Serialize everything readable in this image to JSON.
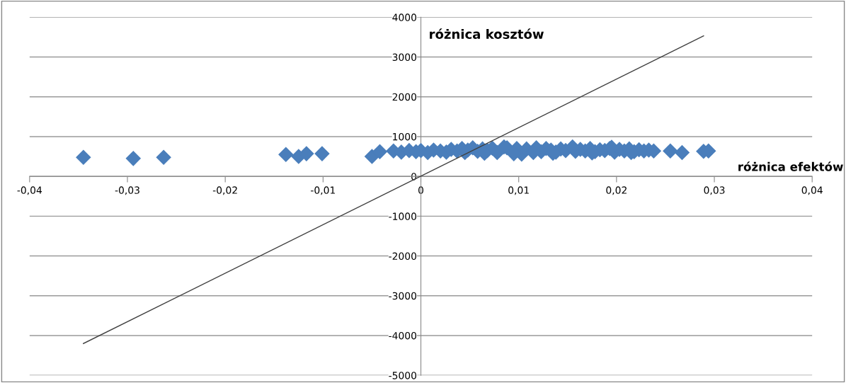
{
  "chart_data": {
    "type": "scatter",
    "xlabel": "różnica efektów",
    "ylabel": "różnica kosztów",
    "xlim": [
      -0.04,
      0.04
    ],
    "ylim": [
      -5000,
      4000
    ],
    "xticks": [
      {
        "value": -0.04,
        "label": "-0,04"
      },
      {
        "value": -0.03,
        "label": "-0,03"
      },
      {
        "value": -0.02,
        "label": "-0,02"
      },
      {
        "value": -0.01,
        "label": "-0,01"
      },
      0,
      {
        "value": 0.01,
        "label": "0,01"
      },
      {
        "value": 0.02,
        "label": "0,02"
      },
      {
        "value": 0.03,
        "label": "0,03"
      },
      {
        "value": 0.04,
        "label": "0,04"
      }
    ],
    "yticks": [
      -5000,
      -4000,
      -3000,
      -2000,
      -1000,
      0,
      1000,
      2000,
      3000,
      4000
    ],
    "grid": "y",
    "marker": "diamond",
    "series": [
      {
        "color": "#4a7ebb",
        "x": [
          -0.0345,
          -0.0294,
          -0.0263,
          -0.0138,
          -0.0125,
          -0.0117,
          -0.0101,
          -0.005,
          -0.0042,
          -0.0028,
          -0.002,
          -0.0012,
          -0.0005,
          0.0,
          0.0007,
          0.0013,
          0.002,
          0.0026,
          0.0031,
          0.0037,
          0.0042,
          0.0048,
          0.0053,
          0.0058,
          0.0063,
          0.0068,
          0.0073,
          0.0078,
          0.0088,
          0.0098,
          0.0103,
          0.0108,
          0.0118,
          0.0123,
          0.0128,
          0.0133,
          0.0138,
          0.0143,
          0.0148,
          0.0158,
          0.0163,
          0.0168,
          0.0173,
          0.0178,
          0.0183,
          0.0188,
          0.0193,
          0.0198,
          0.0203,
          0.0208,
          0.0213,
          0.0218,
          0.0223,
          0.0228,
          0.0233,
          0.0238,
          0.0255,
          0.0267,
          0.0289,
          0.0294,
          0.0045,
          0.0065,
          0.0085,
          0.0095,
          0.0115,
          0.0135,
          0.0155,
          0.0175,
          0.0195,
          0.0215
        ],
        "values": [
          480,
          450,
          480,
          550,
          500,
          570,
          570,
          500,
          620,
          640,
          610,
          650,
          620,
          650,
          600,
          660,
          640,
          610,
          680,
          640,
          700,
          660,
          720,
          630,
          690,
          650,
          710,
          600,
          720,
          700,
          560,
          690,
          720,
          620,
          700,
          660,
          610,
          690,
          650,
          630,
          680,
          640,
          700,
          620,
          670,
          650,
          700,
          610,
          680,
          640,
          690,
          620,
          670,
          640,
          660,
          640,
          640,
          600,
          630,
          640,
          600,
          580,
          740,
          570,
          600,
          580,
          740,
          590,
          730,
          600
        ]
      },
      {
        "type": "line",
        "color": "#404040",
        "x": [
          -0.0345,
          0.0289
        ],
        "values": [
          -4200,
          3530
        ],
        "marker": "none"
      }
    ]
  }
}
